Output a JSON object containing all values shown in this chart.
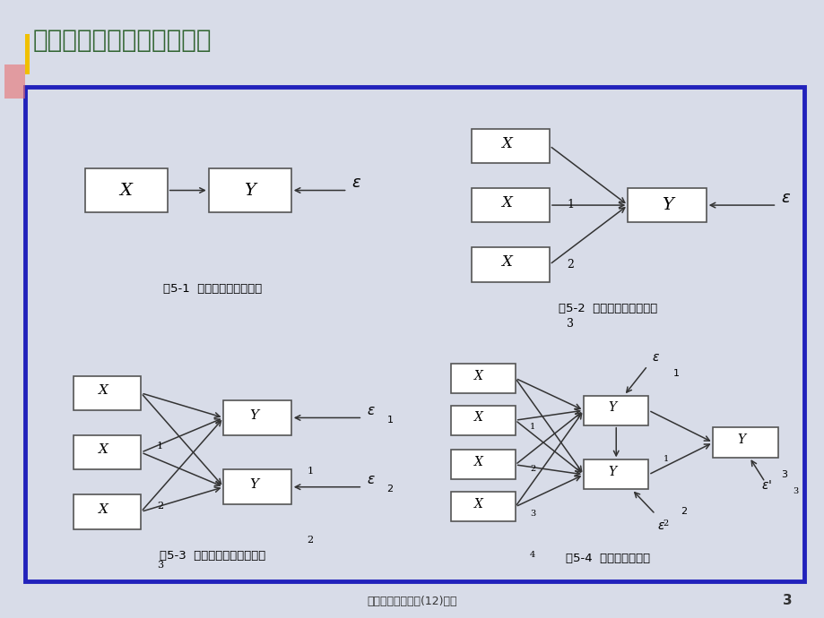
{
  "title": "例如：各种回归分析的比较",
  "bg_color": "#d8dce8",
  "panel_bg": "#ffffff",
  "border_color": "#2222bb",
  "footer_text": "多元线性回归分析(12)课件",
  "footer_page": "3",
  "title_color": "#336633",
  "title_fontsize": 20,
  "fig1_caption": "图5-1  一元回归分析路径图",
  "fig2_caption": "图5-2  多元回归分析路径图",
  "fig3_caption": "图5-3  多变量回归分析路径图",
  "fig4_caption": "图5-4  路径分析路径图",
  "stripe_color": "#e8e8e8"
}
